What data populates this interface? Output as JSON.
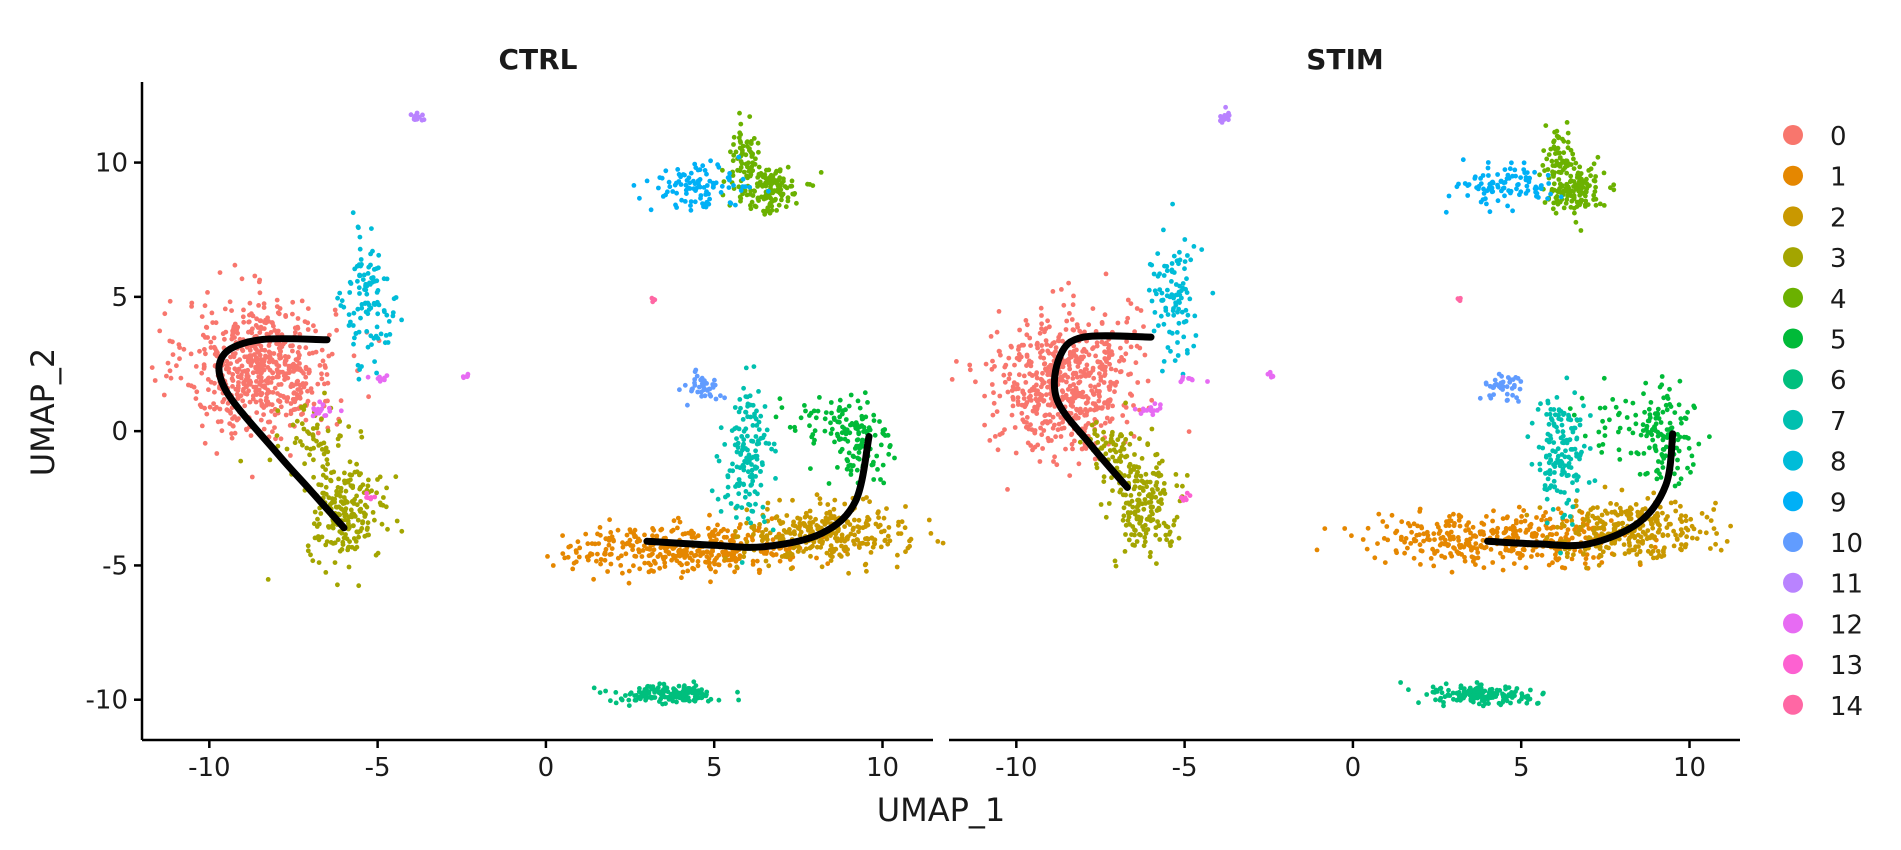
{
  "chart_data": {
    "type": "scatter",
    "xlabel": "UMAP_1",
    "ylabel": "UMAP_2",
    "xlim": [
      -12,
      11.5
    ],
    "ylim": [
      -11.5,
      13
    ],
    "xticks": [
      -10,
      -5,
      0,
      5,
      10
    ],
    "yticks": [
      -10,
      -5,
      0,
      5,
      10
    ],
    "grid": false,
    "legend_position": "right",
    "legend": {
      "entries": [
        "0",
        "1",
        "2",
        "3",
        "4",
        "5",
        "6",
        "7",
        "8",
        "9",
        "10",
        "11",
        "12",
        "13",
        "14"
      ]
    },
    "cluster_colors": [
      "#F8766D",
      "#E58700",
      "#C99800",
      "#A3A500",
      "#6BB100",
      "#00BA38",
      "#00BF7D",
      "#00C0AF",
      "#00BCD8",
      "#00B0F6",
      "#619CFF",
      "#B983FF",
      "#E76BF3",
      "#FD61D1",
      "#FF67A4"
    ],
    "trajectory_color": "#000000",
    "panels": [
      {
        "title": "CTRL",
        "clusters": [
          {
            "id": 0,
            "regions": [
              {
                "cx": -8.5,
                "cy": 2.4,
                "sx": 1.1,
                "sy": 1.25,
                "n": 620
              }
            ]
          },
          {
            "id": 1,
            "regions": [
              {
                "cx": 4.2,
                "cy": -4.4,
                "sx": 1.8,
                "sy": 0.45,
                "n": 360
              }
            ]
          },
          {
            "id": 2,
            "regions": [
              {
                "cx": 8.3,
                "cy": -3.8,
                "sx": 1.2,
                "sy": 0.55,
                "n": 300
              }
            ]
          },
          {
            "id": 3,
            "regions": [
              {
                "cx": -5.9,
                "cy": -3.0,
                "sx": 0.6,
                "sy": 0.9,
                "n": 210
              },
              {
                "cx": -7.0,
                "cy": -0.5,
                "sx": 0.5,
                "sy": 0.7,
                "n": 60
              }
            ]
          },
          {
            "id": 4,
            "regions": [
              {
                "cx": 6.6,
                "cy": 9.0,
                "sx": 0.5,
                "sy": 0.45,
                "n": 140
              },
              {
                "cx": 5.9,
                "cy": 10.3,
                "sx": 0.25,
                "sy": 0.6,
                "n": 60
              }
            ]
          },
          {
            "id": 5,
            "regions": [
              {
                "cx": 9.3,
                "cy": -0.5,
                "sx": 0.45,
                "sy": 0.9,
                "n": 120
              },
              {
                "cx": 8.0,
                "cy": 0.4,
                "sx": 0.8,
                "sy": 0.5,
                "n": 35
              }
            ]
          },
          {
            "id": 6,
            "regions": [
              {
                "cx": 3.6,
                "cy": -9.8,
                "sx": 0.8,
                "sy": 0.18,
                "n": 160
              }
            ]
          },
          {
            "id": 7,
            "regions": [
              {
                "cx": 6.0,
                "cy": -1.0,
                "sx": 0.35,
                "sy": 1.2,
                "n": 150
              }
            ]
          },
          {
            "id": 8,
            "regions": [
              {
                "cx": -5.2,
                "cy": 4.8,
                "sx": 0.4,
                "sy": 1.3,
                "n": 110
              }
            ]
          },
          {
            "id": 9,
            "regions": [
              {
                "cx": 4.4,
                "cy": 9.1,
                "sx": 0.7,
                "sy": 0.4,
                "n": 100
              }
            ]
          },
          {
            "id": 10,
            "regions": [
              {
                "cx": 4.6,
                "cy": 1.7,
                "sx": 0.3,
                "sy": 0.3,
                "n": 40
              }
            ]
          },
          {
            "id": 11,
            "regions": [
              {
                "cx": -3.8,
                "cy": 11.7,
                "sx": 0.1,
                "sy": 0.12,
                "n": 14
              }
            ]
          },
          {
            "id": 12,
            "regions": [
              {
                "cx": -6.6,
                "cy": 0.8,
                "sx": 0.2,
                "sy": 0.12,
                "n": 16
              },
              {
                "cx": -4.8,
                "cy": 2.0,
                "sx": 0.3,
                "sy": 0.06,
                "n": 8
              },
              {
                "cx": -2.4,
                "cy": 2.05,
                "sx": 0.08,
                "sy": 0.05,
                "n": 6
              }
            ]
          },
          {
            "id": 13,
            "regions": [
              {
                "cx": -5.2,
                "cy": -2.5,
                "sx": 0.07,
                "sy": 0.1,
                "n": 6
              }
            ]
          },
          {
            "id": 14,
            "regions": [
              {
                "cx": 3.2,
                "cy": 4.9,
                "sx": 0.04,
                "sy": 0.05,
                "n": 4
              }
            ]
          }
        ],
        "trajectories": [
          [
            [
              -6.5,
              3.4
            ],
            [
              -8.5,
              3.4
            ],
            [
              -9.6,
              2.8
            ],
            [
              -9.5,
              1.5
            ],
            [
              -8.0,
              -0.8
            ],
            [
              -7.0,
              -2.2
            ],
            [
              -6.0,
              -3.6
            ]
          ],
          [
            [
              3.0,
              -4.1
            ],
            [
              5.0,
              -4.25
            ],
            [
              6.5,
              -4.3
            ],
            [
              8.2,
              -3.8
            ],
            [
              9.2,
              -2.6
            ],
            [
              9.6,
              -0.2
            ]
          ]
        ]
      },
      {
        "title": "STIM",
        "clusters": [
          {
            "id": 0,
            "regions": [
              {
                "cx": -8.6,
                "cy": 1.8,
                "sx": 1.0,
                "sy": 1.35,
                "n": 600
              }
            ]
          },
          {
            "id": 1,
            "regions": [
              {
                "cx": 4.5,
                "cy": -4.0,
                "sx": 1.9,
                "sy": 0.45,
                "n": 380
              }
            ]
          },
          {
            "id": 2,
            "regions": [
              {
                "cx": 8.3,
                "cy": -3.6,
                "sx": 1.1,
                "sy": 0.55,
                "n": 290
              }
            ]
          },
          {
            "id": 3,
            "regions": [
              {
                "cx": -6.2,
                "cy": -2.6,
                "sx": 0.55,
                "sy": 0.9,
                "n": 190
              },
              {
                "cx": -7.2,
                "cy": -0.6,
                "sx": 0.4,
                "sy": 0.6,
                "n": 50
              }
            ]
          },
          {
            "id": 4,
            "regions": [
              {
                "cx": 6.6,
                "cy": 9.0,
                "sx": 0.45,
                "sy": 0.45,
                "n": 140
              },
              {
                "cx": 6.1,
                "cy": 10.3,
                "sx": 0.25,
                "sy": 0.6,
                "n": 60
              }
            ]
          },
          {
            "id": 5,
            "regions": [
              {
                "cx": 9.2,
                "cy": -0.3,
                "sx": 0.45,
                "sy": 0.9,
                "n": 120
              },
              {
                "cx": 8.0,
                "cy": 0.4,
                "sx": 0.8,
                "sy": 0.5,
                "n": 35
              }
            ]
          },
          {
            "id": 6,
            "regions": [
              {
                "cx": 3.8,
                "cy": -9.8,
                "sx": 0.8,
                "sy": 0.18,
                "n": 160
              }
            ]
          },
          {
            "id": 7,
            "regions": [
              {
                "cx": 6.2,
                "cy": -1.0,
                "sx": 0.35,
                "sy": 1.2,
                "n": 150
              }
            ]
          },
          {
            "id": 8,
            "regions": [
              {
                "cx": -5.3,
                "cy": 5.0,
                "sx": 0.4,
                "sy": 1.2,
                "n": 100
              }
            ]
          },
          {
            "id": 9,
            "regions": [
              {
                "cx": 4.6,
                "cy": 9.1,
                "sx": 0.7,
                "sy": 0.4,
                "n": 100
              }
            ]
          },
          {
            "id": 10,
            "regions": [
              {
                "cx": 4.5,
                "cy": 1.7,
                "sx": 0.3,
                "sy": 0.3,
                "n": 40
              }
            ]
          },
          {
            "id": 11,
            "regions": [
              {
                "cx": -3.8,
                "cy": 11.7,
                "sx": 0.1,
                "sy": 0.12,
                "n": 14
              }
            ]
          },
          {
            "id": 12,
            "regions": [
              {
                "cx": -6.1,
                "cy": 0.8,
                "sx": 0.2,
                "sy": 0.12,
                "n": 14
              },
              {
                "cx": -4.8,
                "cy": 1.9,
                "sx": 0.3,
                "sy": 0.06,
                "n": 8
              },
              {
                "cx": -2.4,
                "cy": 2.1,
                "sx": 0.08,
                "sy": 0.05,
                "n": 6
              }
            ]
          },
          {
            "id": 13,
            "regions": [
              {
                "cx": -5.0,
                "cy": -2.5,
                "sx": 0.07,
                "sy": 0.1,
                "n": 6
              }
            ]
          },
          {
            "id": 14,
            "regions": [
              {
                "cx": 3.2,
                "cy": 4.9,
                "sx": 0.04,
                "sy": 0.05,
                "n": 4
              }
            ]
          }
        ],
        "trajectories": [
          [
            [
              -6.0,
              3.5
            ],
            [
              -8.0,
              3.5
            ],
            [
              -8.7,
              2.8
            ],
            [
              -8.8,
              1.2
            ],
            [
              -7.8,
              -0.5
            ],
            [
              -6.7,
              -2.1
            ]
          ],
          [
            [
              4.0,
              -4.1
            ],
            [
              5.5,
              -4.2
            ],
            [
              7.0,
              -4.2
            ],
            [
              8.5,
              -3.4
            ],
            [
              9.3,
              -2.0
            ],
            [
              9.5,
              -0.1
            ]
          ]
        ]
      }
    ]
  }
}
